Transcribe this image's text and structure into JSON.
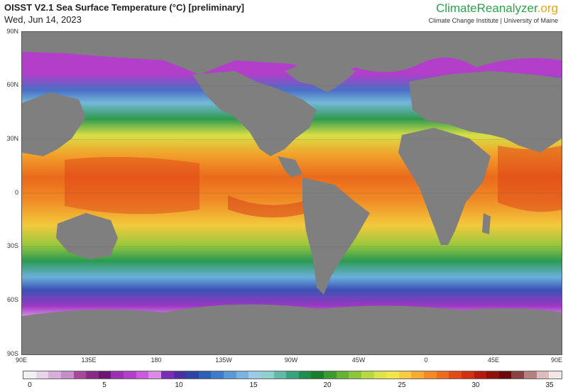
{
  "header": {
    "title": "OISST V2.1 Sea Surface Temperature (°C) [preliminary]",
    "date": "Wed, Jun 14, 2023",
    "brand_main": "ClimateReanalyzer",
    "brand_tld": ".org",
    "brand_sub": "Climate Change Institute | University of Maine"
  },
  "axes": {
    "lat_labels": [
      "90N",
      "60N",
      "30N",
      "0",
      "30S",
      "60S",
      "90S"
    ],
    "lon_labels": [
      "90E",
      "135E",
      "180",
      "135W",
      "90W",
      "45W",
      "0",
      "45E",
      "90E"
    ]
  },
  "colorbar": {
    "min": 0,
    "max": 35,
    "tick_labels": [
      "0",
      "5",
      "10",
      "15",
      "20",
      "25",
      "30",
      "35"
    ],
    "colors": [
      "#f3f0f4",
      "#e8d4e8",
      "#d7b0d9",
      "#c58ec9",
      "#a8489d",
      "#8a2b8a",
      "#6e1473",
      "#9b30b0",
      "#b23ec9",
      "#c95cdd",
      "#d88ae6",
      "#7c2db8",
      "#4a2fa3",
      "#2e45a6",
      "#2c5fb8",
      "#3d7cc9",
      "#5b98d6",
      "#7bb3e0",
      "#9bcbe6",
      "#8fd0cf",
      "#62b9a8",
      "#3aa37b",
      "#1f8d4e",
      "#1a7c2f",
      "#3c9a2c",
      "#66b233",
      "#8ec63b",
      "#b8d741",
      "#dbe448",
      "#f2e64a",
      "#f8cc3c",
      "#f8aa2e",
      "#f48a24",
      "#ee6a1c",
      "#e34b16",
      "#d22f12",
      "#b51a0f",
      "#90100c",
      "#6a0808",
      "#8a4040",
      "#b78080",
      "#dcbcbc",
      "#f3e6e6"
    ]
  },
  "map": {
    "land_color": "#7f7f7f",
    "ice_color": "#ffffff",
    "sst_bands": [
      {
        "zone": "arctic",
        "color": "#c250d8"
      },
      {
        "zone": "north-subpolar",
        "color": "#4a6fc6"
      },
      {
        "zone": "north-temperate",
        "color": "#73b8d9"
      },
      {
        "zone": "north-mid",
        "color": "#2f9a4f"
      },
      {
        "zone": "north-subtropical",
        "color": "#d8df46"
      },
      {
        "zone": "tropical",
        "color": "#ef7b1f"
      },
      {
        "zone": "equatorial-warm",
        "color": "#de3f17"
      },
      {
        "zone": "south-subtropical",
        "color": "#f1c23a"
      },
      {
        "zone": "south-mid",
        "color": "#2c9a52"
      },
      {
        "zone": "south-temperate",
        "color": "#6ab0da"
      },
      {
        "zone": "south-subpolar",
        "color": "#3b52b5"
      },
      {
        "zone": "southern-ocean",
        "color": "#9f37c4"
      }
    ]
  }
}
